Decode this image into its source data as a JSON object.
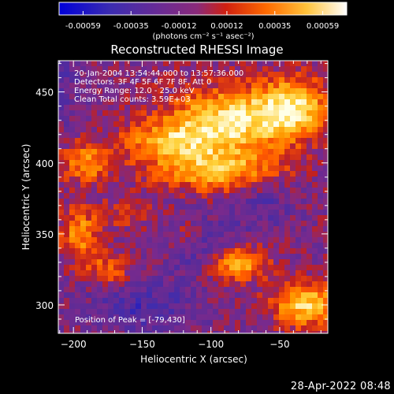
{
  "colors": {
    "background": "#000000",
    "text": "#ffffff",
    "colormap": [
      "#0000d8",
      "#3c2cb0",
      "#5a2b98",
      "#7a2a8c",
      "#c02020",
      "#ff5a00",
      "#ff9800",
      "#ffd23c",
      "#ffffe8"
    ]
  },
  "colorbar": {
    "tick_labels": [
      "-0.00059",
      "-0.00035",
      "-0.00012",
      "0.00012",
      "0.00035",
      "0.00059"
    ],
    "units": "(photons cm⁻² s⁻¹ asec⁻²)"
  },
  "chart_data": {
    "type": "heatmap",
    "title": "Reconstructed RHESSI Image",
    "xlabel": "Heliocentric X (arcsec)",
    "ylabel": "Heliocentric Y (arcsec)",
    "xlim": [
      -211,
      -15
    ],
    "ylim": [
      280,
      472
    ],
    "x_ticks": [
      -200,
      -150,
      -100,
      -50
    ],
    "x_tick_labels": [
      "−200",
      "−150",
      "−100",
      "−50"
    ],
    "y_ticks": [
      300,
      350,
      400,
      450
    ],
    "y_tick_labels": [
      "300",
      "350",
      "400",
      "450"
    ],
    "value_range": [
      -0.00059,
      0.00059
    ],
    "annotations": [
      "20-Jan-2004 13:54:44.000 to 13:57:36.000",
      "Detectors: 3F 4F 5F 6F 7F 8F, Att 0",
      "Energy Range: 12.0 - 25.0 keV",
      "Clean    Total counts: 3.59E+03"
    ],
    "peak_label": "Position of Peak = [-79,430]",
    "peak_position": [
      -79,
      430
    ],
    "grid": false
  },
  "footer": {
    "timestamp": "28-Apr-2022 08:48"
  }
}
